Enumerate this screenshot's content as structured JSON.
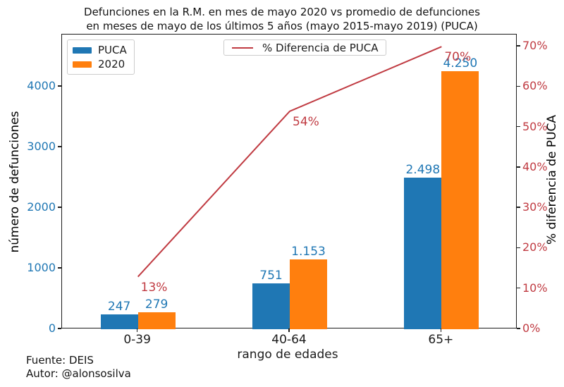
{
  "title": {
    "line1": "Defunciones en la R.M. en mes de mayo 2020 vs promedio de defunciones",
    "line2": "en meses de mayo de los últimos 5 años (mayo 2015-mayo 2019) (PUCA)"
  },
  "legend": {
    "bars": [
      {
        "label": "PUCA",
        "color": "#1f77b4"
      },
      {
        "label": "2020",
        "color": "#ff7f0e"
      }
    ],
    "line": {
      "label": "% Diferencia de PUCA",
      "color": "#c03b42"
    }
  },
  "footer": {
    "source": "Fuente: DEIS",
    "author": "Autor: @alonsosilva"
  },
  "chart_data": {
    "type": "bar",
    "title": "Defunciones en la R.M. en mes de mayo 2020 vs promedio de defunciones en meses de mayo de los últimos 5 años (mayo 2015-mayo 2019) (PUCA)",
    "categories": [
      "0-39",
      "40-64",
      "65+"
    ],
    "series": [
      {
        "name": "PUCA",
        "type": "bar",
        "axis": "left",
        "color": "#1f77b4",
        "values": [
          247,
          751,
          2498
        ],
        "value_labels": [
          "247",
          "751",
          "2.498"
        ]
      },
      {
        "name": "2020",
        "type": "bar",
        "axis": "left",
        "color": "#ff7f0e",
        "values": [
          279,
          1153,
          4250
        ],
        "value_labels": [
          "279",
          "1.153",
          "4.250"
        ]
      },
      {
        "name": "% Diferencia de PUCA",
        "type": "line",
        "axis": "right",
        "color": "#c03b42",
        "values": [
          13,
          54,
          70
        ],
        "value_labels": [
          "13%",
          "54%",
          "70%"
        ]
      }
    ],
    "xlabel": "rango de edades",
    "left_axis": {
      "label": "número de defunciones",
      "color": "#1f77b4",
      "ticks": [
        0,
        1000,
        2000,
        3000,
        4000
      ],
      "tick_labels": [
        "0",
        "1000",
        "2000",
        "3000",
        "4000"
      ],
      "range": [
        0,
        4860
      ]
    },
    "right_axis": {
      "label": "% diferencia de PUCA",
      "color": "#c03b42",
      "ticks": [
        0,
        10,
        20,
        30,
        40,
        50,
        60,
        70
      ],
      "tick_labels": [
        "0%",
        "10%",
        "20%",
        "30%",
        "40%",
        "50%",
        "60%",
        "70%"
      ],
      "range": [
        0,
        73
      ]
    },
    "grid": false,
    "legend_positions": {
      "bars": "upper left",
      "line": "upper center"
    }
  }
}
